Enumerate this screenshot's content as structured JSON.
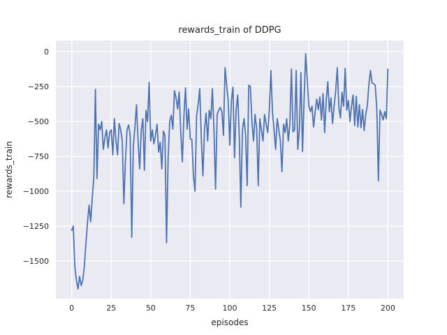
{
  "figure": {
    "background": "#ffffff"
  },
  "chart_data": {
    "type": "line",
    "title": "rewards_train of DDPG",
    "xlabel": "episodes",
    "ylabel": "rewards_train",
    "legend": "none",
    "grid": true,
    "plot_bg": "#EAEAF2",
    "grid_color": "#FFFFFF",
    "text_color": "#262626",
    "xlim": [
      -10,
      210
    ],
    "ylim": [
      -1770,
      80
    ],
    "xticks": {
      "values": [
        0,
        25,
        50,
        75,
        100,
        125,
        150,
        175,
        200
      ],
      "labels": [
        "0",
        "25",
        "50",
        "75",
        "100",
        "125",
        "150",
        "175",
        "200"
      ]
    },
    "yticks": {
      "values": [
        0,
        -250,
        -500,
        -750,
        -1000,
        -1250,
        -1500
      ],
      "labels": [
        "0",
        "−250",
        "−500",
        "−750",
        "−1000",
        "−1250",
        "−1500"
      ]
    },
    "x_start": 0,
    "x_step": 1,
    "series": [
      {
        "name": "rewards_train",
        "color": "#4C72B0",
        "values": [
          -1280,
          -1250,
          -1540,
          -1640,
          -1700,
          -1610,
          -1675,
          -1640,
          -1540,
          -1375,
          -1225,
          -1100,
          -1220,
          -1050,
          -900,
          -270,
          -910,
          -520,
          -560,
          -500,
          -700,
          -620,
          -560,
          -690,
          -580,
          -560,
          -740,
          -480,
          -640,
          -740,
          -515,
          -560,
          -640,
          -1090,
          -780,
          -560,
          -525,
          -600,
          -1330,
          -680,
          -540,
          -380,
          -640,
          -840,
          -560,
          -480,
          -850,
          -420,
          -500,
          -220,
          -640,
          -560,
          -660,
          -600,
          -520,
          -720,
          -650,
          -840,
          -570,
          -600,
          -1370,
          -760,
          -500,
          -455,
          -555,
          -280,
          -330,
          -410,
          -290,
          -575,
          -790,
          -460,
          -260,
          -555,
          -410,
          -625,
          -630,
          -890,
          -1000,
          -460,
          -380,
          -265,
          -625,
          -890,
          -560,
          -440,
          -640,
          -420,
          -480,
          -265,
          -560,
          -985,
          -450,
          -420,
          -400,
          -430,
          -600,
          -115,
          -240,
          -350,
          -670,
          -350,
          -255,
          -760,
          -420,
          -310,
          -600,
          -1115,
          -560,
          -480,
          -600,
          -960,
          -240,
          -250,
          -500,
          -640,
          -450,
          -550,
          -960,
          -480,
          -560,
          -640,
          -450,
          -520,
          -580,
          -420,
          -135,
          -430,
          -560,
          -700,
          -480,
          -560,
          -640,
          -860,
          -520,
          -580,
          -480,
          -640,
          -520,
          -125,
          -575,
          -560,
          -135,
          -700,
          -560,
          -150,
          -715,
          -340,
          -15,
          -200,
          -390,
          -430,
          -390,
          -540,
          -430,
          -340,
          -415,
          -325,
          -490,
          -300,
          -580,
          -350,
          -215,
          -430,
          -330,
          -515,
          -390,
          -280,
          -115,
          -400,
          -475,
          -290,
          -390,
          -120,
          -420,
          -350,
          -500,
          -390,
          -310,
          -530,
          -320,
          -540,
          -380,
          -545,
          -415,
          -565,
          -450,
          -385,
          -235,
          -135,
          -225,
          -230,
          -240,
          -415,
          -925,
          -420,
          -450,
          -490,
          -430,
          -480,
          -125
        ]
      }
    ]
  }
}
